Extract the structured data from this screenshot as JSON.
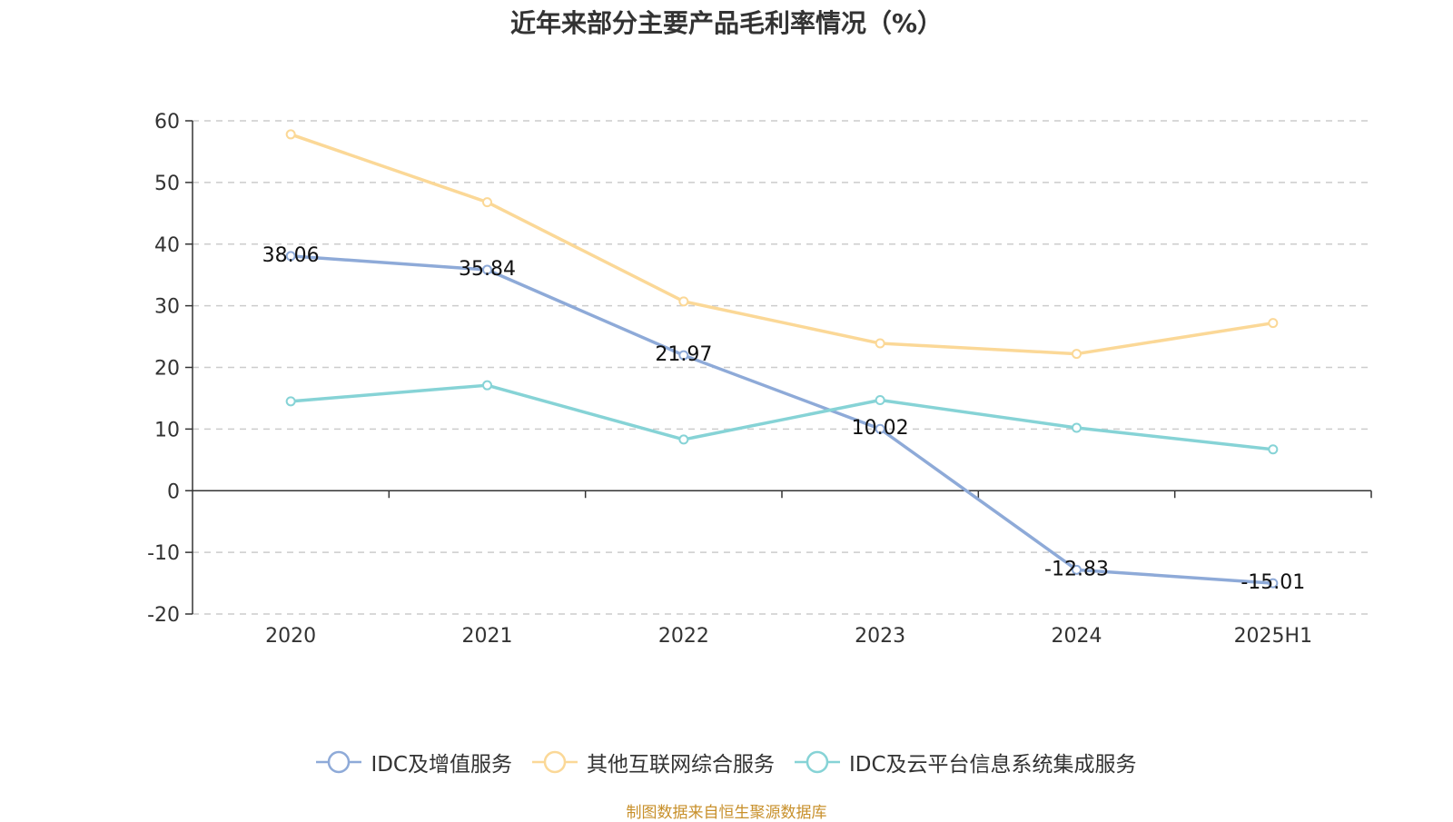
{
  "chart_data": {
    "type": "line",
    "title": "近年来部分主要产品毛利率情况（%）",
    "categories": [
      "2020",
      "2021",
      "2022",
      "2023",
      "2024",
      "2025H1"
    ],
    "ylim": [
      -20,
      60
    ],
    "yticks": [
      60,
      50,
      40,
      30,
      20,
      10,
      0,
      -10,
      -20
    ],
    "grid": true,
    "legend_position": "bottom",
    "series": [
      {
        "name": "IDC及增值服务",
        "color": "#8eaad8",
        "values": [
          38.06,
          35.84,
          21.97,
          10.02,
          -12.83,
          -15.01
        ],
        "labels": [
          "38.06",
          "35.84",
          "21.97",
          "10.02",
          "-12.83",
          "-15.01"
        ]
      },
      {
        "name": "其他互联网综合服务",
        "color": "#fbd897",
        "values": [
          57.8,
          46.8,
          30.7,
          23.9,
          22.2,
          27.2
        ],
        "labels": []
      },
      {
        "name": "IDC及云平台信息系统集成服务",
        "color": "#86d3d6",
        "values": [
          14.5,
          17.1,
          8.3,
          14.7,
          10.2,
          6.7
        ],
        "labels": []
      }
    ]
  },
  "source": "制图数据来自恒生聚源数据库"
}
